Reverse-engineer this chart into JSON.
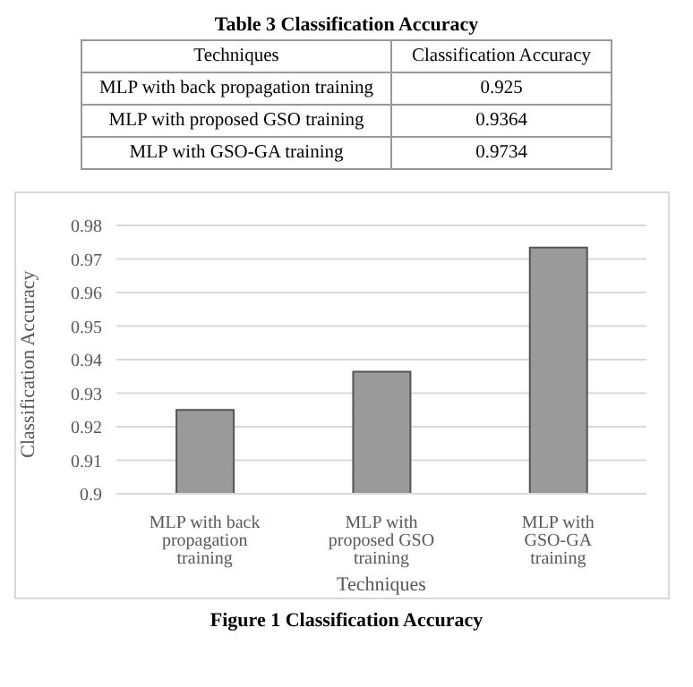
{
  "chart_data": [
    {
      "type": "other",
      "title": "Table 3 Classification Accuracy",
      "xlabel": "Techniques",
      "ylabel": "Classification Accuracy",
      "categories": [
        "MLP with back propagation training",
        "MLP with proposed GSO training",
        "MLP with GSO-GA training"
      ],
      "values": [
        0.925,
        0.9364,
        0.9734
      ],
      "value_labels": [
        "0.925",
        "0.9364",
        "0.9734"
      ]
    },
    {
      "type": "bar",
      "title": "Figure 1 Classification Accuracy",
      "xlabel": "Techniques",
      "ylabel": "Classification Accuracy",
      "categories": [
        "MLP with back propagation training",
        "MLP with proposed GSO training",
        "MLP with GSO-GA training"
      ],
      "values": [
        0.925,
        0.9364,
        0.9734
      ],
      "color": "#9a9a9a",
      "ylim": [
        0.9,
        0.98
      ],
      "yticks": [
        0.9,
        0.91,
        0.92,
        0.93,
        0.94,
        0.95,
        0.96,
        0.97,
        0.98
      ],
      "grid": "y"
    }
  ]
}
